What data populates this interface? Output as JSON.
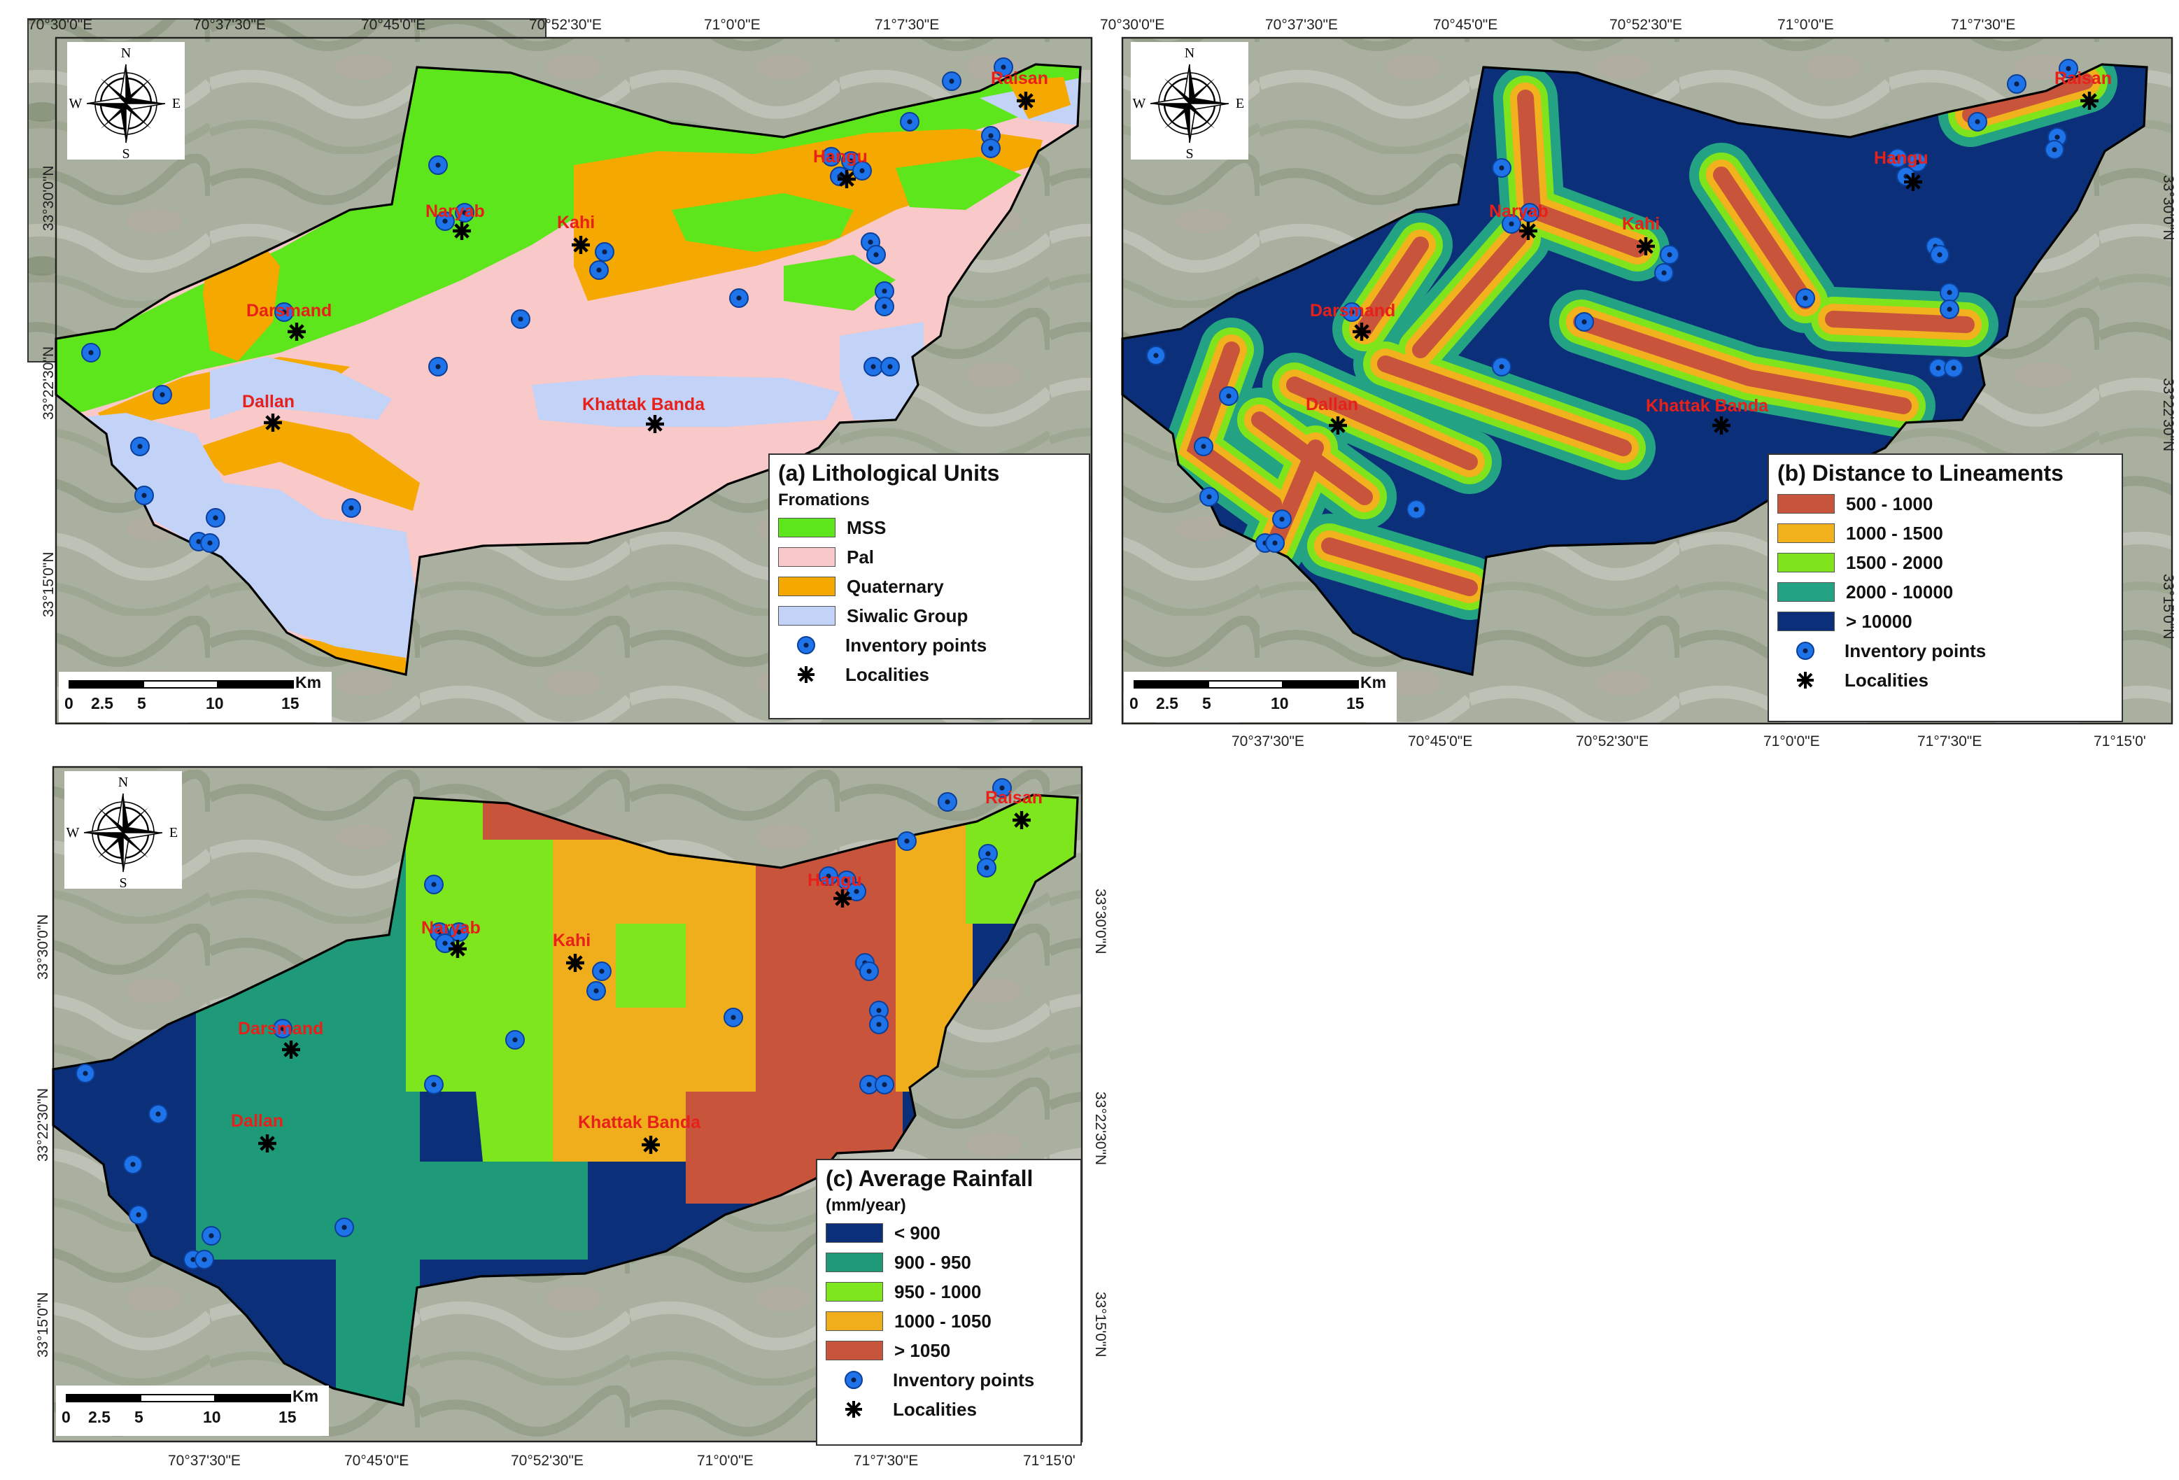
{
  "panels": {
    "a": {
      "legend_title": "(a) Lithological Units",
      "legend_sub": "Fromations",
      "items": [
        {
          "label": "MSS",
          "color": "#5ee61c"
        },
        {
          "label": "Pal",
          "color": "#f9c8c8"
        },
        {
          "label": "Quaternary",
          "color": "#f5a800"
        },
        {
          "label": "Siwalic Group",
          "color": "#c3d2f7"
        }
      ]
    },
    "b": {
      "legend_title": "(b) Distance to Lineaments",
      "items": [
        {
          "label": "500 - 1000",
          "color": "#c8553b"
        },
        {
          "label": "1000 - 1500",
          "color": "#f2b21e"
        },
        {
          "label": "1500 - 2000",
          "color": "#7fe41c"
        },
        {
          "label": "2000 - 10000",
          "color": "#23a383"
        },
        {
          "label": "> 10000",
          "color": "#0b2f78"
        }
      ]
    },
    "c": {
      "legend_title": "(c) Average Rainfall",
      "legend_sub": "(mm/year)",
      "items": [
        {
          "label": "< 900",
          "color": "#0b2f78"
        },
        {
          "label": "900 - 950",
          "color": "#1f9a79"
        },
        {
          "label": "950 - 1000",
          "color": "#7ee61c"
        },
        {
          "label": "1000 - 1050",
          "color": "#f0ad1c"
        },
        {
          "label": "> 1050",
          "color": "#c8553b"
        }
      ]
    }
  },
  "legend_common": {
    "inventory": "Inventory points",
    "localities": "Localities"
  },
  "scale": {
    "labels": [
      "0",
      "2.5",
      "5",
      "10",
      "15"
    ],
    "unit": "Km"
  },
  "compass": {
    "n": "N",
    "s": "S",
    "e": "E",
    "w": "W"
  },
  "localities": [
    {
      "name": "Raisan"
    },
    {
      "name": "Hangu"
    },
    {
      "name": "Naryab"
    },
    {
      "name": "Kahi"
    },
    {
      "name": "Darsmand"
    },
    {
      "name": "Dallan"
    },
    {
      "name": "Khattak Banda"
    }
  ],
  "axis": {
    "a_top": [
      "70°30'0\"E",
      "70°37'30\"E",
      "70°45'0\"E",
      "70°52'30\"E",
      "71°0'0\"E",
      "71°7'30\"E"
    ],
    "a_left": [
      "33°30'0\"N",
      "33°22'30\"N",
      "33°15'0\"N"
    ],
    "b_top": [
      "70°30'0\"E",
      "70°37'30\"E",
      "70°45'0\"E",
      "70°52'30\"E",
      "71°0'0\"E",
      "71°7'30\"E"
    ],
    "b_bottom": [
      "70°37'30\"E",
      "70°45'0\"E",
      "70°52'30\"E",
      "71°0'0\"E",
      "71°7'30\"E",
      "71°15'0'"
    ],
    "b_right": [
      "33°30'0\"N",
      "33°22'30\"N",
      "33°15'0\"N"
    ],
    "c_left": [
      "33°30'0\"N",
      "33°22'30\"N",
      "33°15'0\"N"
    ],
    "c_right": [
      "33°30'0\"N",
      "33°22'30\"N",
      "33°15'0\"N"
    ],
    "c_bottom": [
      "70°37'30\"E",
      "70°45'0\"E",
      "70°52'30\"E",
      "71°0'0\"E",
      "71°7'30\"E",
      "71°15'0'"
    ]
  },
  "colors": {
    "frame_bg": "#9aa58f",
    "inventory_fill": "#1e73e8",
    "locality_label": "#e8201a"
  }
}
